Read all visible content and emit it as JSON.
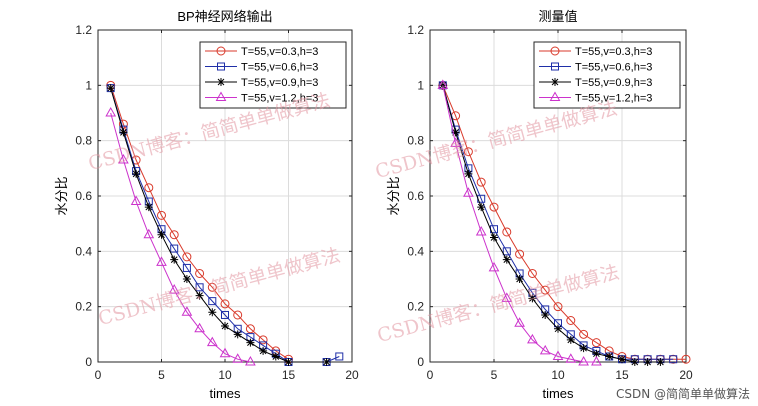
{
  "chart_data": [
    {
      "type": "line",
      "title": "BP神经网络输出",
      "xlabel": "times",
      "ylabel": "水分比",
      "xlim": [
        0,
        20
      ],
      "ylim": [
        0,
        1.2
      ],
      "xticks": [
        "0",
        "5",
        "10",
        "15",
        "20"
      ],
      "yticks": [
        "0",
        "0.2",
        "0.4",
        "0.6",
        "0.8",
        "1",
        "1.2"
      ],
      "grid": true,
      "legend_position": "top-right",
      "series": [
        {
          "name": "T=55,v=0.3,h=3",
          "color": "#d93a2b",
          "marker": "circle",
          "x": [
            1,
            2,
            3,
            4,
            5,
            6,
            7,
            8,
            9,
            10,
            11,
            12,
            13,
            14,
            15
          ],
          "y": [
            1.0,
            0.86,
            0.73,
            0.63,
            0.53,
            0.46,
            0.38,
            0.32,
            0.27,
            0.21,
            0.17,
            0.12,
            0.08,
            0.04,
            0.01
          ]
        },
        {
          "name": "T=55,v=0.6,h=3",
          "color": "#1f2fa8",
          "marker": "square",
          "x": [
            1,
            2,
            3,
            4,
            5,
            6,
            7,
            8,
            9,
            10,
            11,
            12,
            13,
            14,
            15,
            18,
            19
          ],
          "y": [
            0.99,
            0.84,
            0.69,
            0.58,
            0.48,
            0.41,
            0.34,
            0.27,
            0.22,
            0.17,
            0.12,
            0.09,
            0.06,
            0.03,
            0.0,
            0.0,
            0.02
          ]
        },
        {
          "name": "T=55,v=0.9,h=3",
          "color": "#000000",
          "marker": "star",
          "x": [
            1,
            2,
            3,
            4,
            5,
            6,
            7,
            8,
            9,
            10,
            11,
            12,
            13,
            14,
            15,
            18
          ],
          "y": [
            0.99,
            0.83,
            0.68,
            0.56,
            0.46,
            0.37,
            0.3,
            0.24,
            0.18,
            0.13,
            0.1,
            0.07,
            0.04,
            0.02,
            0.0,
            0.0
          ]
        },
        {
          "name": "T=55,v=1.2,h=3",
          "color": "#cc33cc",
          "marker": "triangle",
          "x": [
            1,
            2,
            3,
            4,
            5,
            6,
            7,
            8,
            9,
            10,
            11,
            12
          ],
          "y": [
            0.9,
            0.73,
            0.58,
            0.46,
            0.36,
            0.26,
            0.18,
            0.12,
            0.07,
            0.03,
            0.01,
            0.0
          ]
        }
      ]
    },
    {
      "type": "line",
      "title": "测量值",
      "xlabel": "times",
      "ylabel": "水分比",
      "xlim": [
        0,
        20
      ],
      "ylim": [
        0,
        1.2
      ],
      "xticks": [
        "0",
        "5",
        "10",
        "15",
        "20"
      ],
      "yticks": [
        "0",
        "0.2",
        "0.4",
        "0.6",
        "0.8",
        "1",
        "1.2"
      ],
      "grid": true,
      "legend_position": "top-right",
      "series": [
        {
          "name": "T=55,v=0.3,h=3",
          "color": "#d93a2b",
          "marker": "circle",
          "x": [
            1,
            2,
            3,
            4,
            5,
            6,
            7,
            8,
            9,
            10,
            11,
            12,
            13,
            14,
            15,
            16,
            17,
            18,
            19,
            20
          ],
          "y": [
            1.0,
            0.89,
            0.76,
            0.65,
            0.56,
            0.47,
            0.39,
            0.32,
            0.26,
            0.2,
            0.15,
            0.1,
            0.07,
            0.04,
            0.02,
            0.01,
            0.01,
            0.01,
            0.01,
            0.01
          ]
        },
        {
          "name": "T=55,v=0.6,h=3",
          "color": "#1f2fa8",
          "marker": "square",
          "x": [
            1,
            2,
            3,
            4,
            5,
            6,
            7,
            8,
            9,
            10,
            11,
            12,
            13,
            14,
            15,
            16,
            17,
            18,
            19
          ],
          "y": [
            1.0,
            0.84,
            0.7,
            0.59,
            0.48,
            0.4,
            0.32,
            0.25,
            0.19,
            0.14,
            0.1,
            0.06,
            0.04,
            0.02,
            0.01,
            0.01,
            0.01,
            0.01,
            0.01
          ]
        },
        {
          "name": "T=55,v=0.9,h=3",
          "color": "#000000",
          "marker": "star",
          "x": [
            1,
            2,
            3,
            4,
            5,
            6,
            7,
            8,
            9,
            10,
            11,
            12,
            13,
            14,
            15,
            16,
            17,
            18
          ],
          "y": [
            1.0,
            0.83,
            0.68,
            0.56,
            0.45,
            0.37,
            0.3,
            0.23,
            0.17,
            0.12,
            0.08,
            0.05,
            0.03,
            0.02,
            0.01,
            0.0,
            0.0,
            0.0
          ]
        },
        {
          "name": "T=55,v=1.2,h=3",
          "color": "#cc33cc",
          "marker": "triangle",
          "x": [
            1,
            2,
            3,
            4,
            5,
            6,
            7,
            8,
            9,
            10,
            11,
            12,
            13
          ],
          "y": [
            1.0,
            0.79,
            0.61,
            0.47,
            0.34,
            0.23,
            0.14,
            0.08,
            0.04,
            0.02,
            0.01,
            0.0,
            0.0
          ]
        }
      ]
    }
  ],
  "watermark": {
    "text": "CSDN博客：简简单单做算法"
  },
  "credit": "CSDN @简简单单做算法"
}
